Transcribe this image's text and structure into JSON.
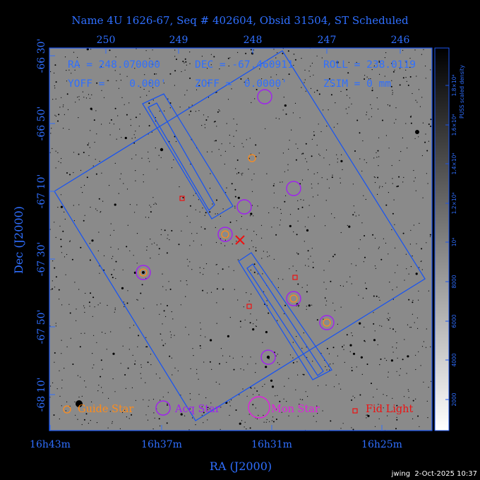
{
  "header": {
    "title": "Name 4U 1626-67, Seq # 402604, Obsid 31504, ST Scheduled"
  },
  "readouts": {
    "ra": "RA = 248.070000",
    "dec": "DEC = -67.460911",
    "roll": "ROLL = 238.0119",
    "yoff": "YOFF =    0.000'",
    "zoff": "ZOFF =  0.0000'",
    "zsim": "ZSIM = 0 mm"
  },
  "axes": {
    "xlabel": "RA (J2000)",
    "ylabel": "Dec (J2000)",
    "bottom_ticks": [
      "16h43m",
      "16h37m",
      "16h31m",
      "16h25m"
    ],
    "top_ticks": [
      "250",
      "249",
      "248",
      "247",
      "246"
    ],
    "left_ticks": [
      "-66 30'",
      "-66 50'",
      "-67 10'",
      "-67 30'",
      "-67 50'",
      "-68 10'"
    ]
  },
  "colorbar": {
    "label": "PUSS scaled density",
    "ticks": [
      "2000",
      "4000",
      "6000",
      "8000",
      "10⁴",
      "1.2×10⁴",
      "1.4×10⁴",
      "1.6×10⁴",
      "1.8×10⁴"
    ]
  },
  "legend": {
    "guide": "Guide Star",
    "acq": "Acq Star",
    "mon": "Mon Star",
    "fid": "Fid Light"
  },
  "footer": {
    "stamp": "jwing  2-Oct-2025 10:37"
  },
  "colors": {
    "frame": "#1b55ee",
    "text": "#2f6fff",
    "guide": "#ff8c1a",
    "acq": "#a020f0",
    "mon": "#e01ee0",
    "fid": "#ee1111",
    "target": "#ee1111"
  },
  "chart_data": {
    "type": "scatter",
    "ra_ticks_deg": [
      250,
      249,
      248,
      247,
      246
    ],
    "center": {
      "ra": 248.07,
      "dec": -67.460911
    },
    "guide_stars": [
      {
        "ra": 248.04,
        "dec": -66.99
      },
      {
        "ra": 248.37,
        "dec": -67.45
      },
      {
        "ra": 250.04,
        "dec": -67.68
      },
      {
        "ra": 247.46,
        "dec": -67.7
      },
      {
        "ra": 246.98,
        "dec": -67.93
      }
    ],
    "acq_stars": [
      {
        "ra": 247.78,
        "dec": -66.64
      },
      {
        "ra": 248.37,
        "dec": -67.45
      },
      {
        "ra": 248.18,
        "dec": -67.33
      },
      {
        "ra": 247.6,
        "dec": -67.12
      },
      {
        "ra": 250.04,
        "dec": -67.68
      },
      {
        "ra": 247.46,
        "dec": -67.7
      },
      {
        "ra": 246.98,
        "dec": -67.93
      },
      {
        "ra": 247.76,
        "dec": -68.08
      }
    ],
    "fid_lights": [
      {
        "ra": 249.12,
        "dec": -67.23
      },
      {
        "ra": 247.47,
        "dec": -67.63
      },
      {
        "ra": 248.1,
        "dec": -67.78
      }
    ]
  }
}
